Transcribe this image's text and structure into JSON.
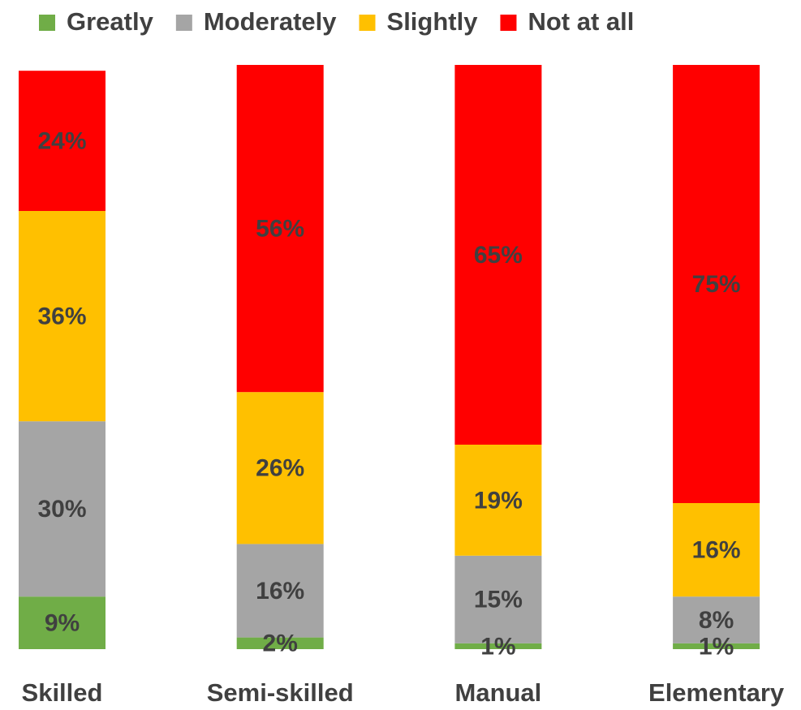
{
  "chart_data": {
    "type": "bar",
    "stacked": true,
    "categories": [
      "Skilled",
      "Semi-skilled",
      "Manual",
      "Elementary"
    ],
    "series": [
      {
        "name": "Greatly",
        "color": "#70ad47",
        "values": [
          9,
          2,
          1,
          1
        ],
        "value_labels": [
          "9%",
          "2%",
          "1%",
          "1%"
        ]
      },
      {
        "name": "Moderately",
        "color": "#a5a5a5",
        "values": [
          30,
          16,
          15,
          8
        ],
        "value_labels": [
          "30%",
          "16%",
          "15%",
          "8%"
        ]
      },
      {
        "name": "Slightly",
        "color": "#ffc000",
        "values": [
          36,
          26,
          19,
          16
        ],
        "value_labels": [
          "36%",
          "26%",
          "19%",
          "16%"
        ]
      },
      {
        "name": "Not at all",
        "color": "#ff0000",
        "values": [
          24,
          56,
          65,
          75
        ],
        "value_labels": [
          "24%",
          "56%",
          "65%",
          "75%"
        ]
      }
    ],
    "ylim": [
      0,
      100
    ],
    "legend": "top"
  }
}
